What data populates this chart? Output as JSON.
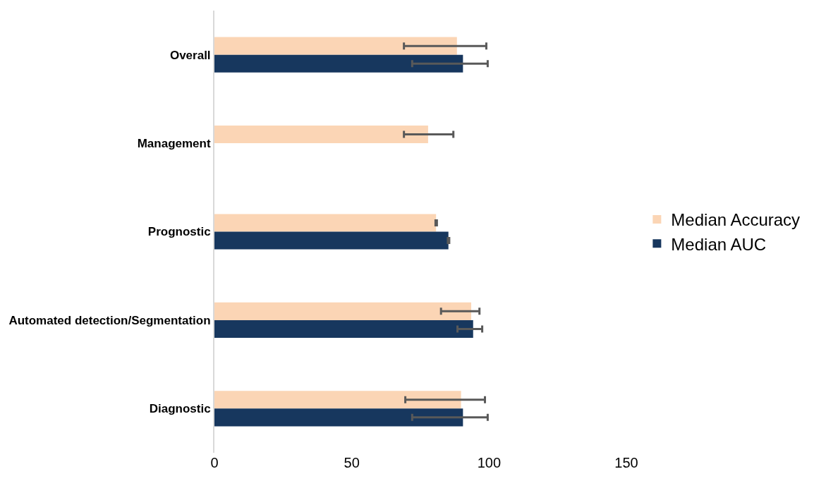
{
  "chart_data": {
    "type": "bar",
    "orientation": "horizontal",
    "categories": [
      "Overall",
      "Management",
      "Prognostic",
      "Automated detection/Segmentation",
      "Diagnostic"
    ],
    "series": [
      {
        "name": "Median Accuracy",
        "color": "#fbd5b5",
        "values": [
          88.3,
          77.8,
          80.7,
          93.5,
          89.8
        ],
        "errors": [
          [
            69,
            99
          ],
          [
            69,
            87
          ],
          [
            80.5,
            81
          ],
          [
            82.5,
            96.5
          ],
          [
            69.5,
            98.5
          ]
        ]
      },
      {
        "name": "Median AUC",
        "color": "#17375e",
        "values": [
          90.5,
          0,
          85.2,
          94.2,
          90.5
        ],
        "errors": [
          [
            72,
            99.5
          ],
          null,
          [
            85,
            85.5
          ],
          [
            88.5,
            97.5
          ],
          [
            72,
            99.5
          ]
        ]
      }
    ],
    "xlim": [
      0,
      150
    ],
    "xticks": [
      0,
      50,
      100,
      150
    ],
    "legend": "right"
  }
}
